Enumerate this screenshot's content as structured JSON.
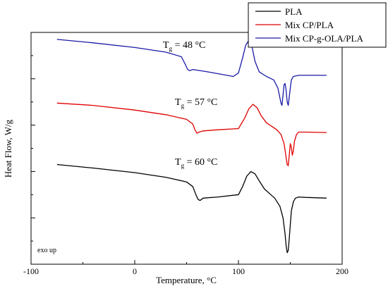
{
  "chart_data": {
    "type": "line",
    "xlabel": "Temperature, °C",
    "ylabel": "Heat Flow, W/g",
    "xlim": [
      -100,
      200
    ],
    "x_ticks": [
      "-100",
      "0",
      "100",
      "200"
    ],
    "y_tick_labels_shown": false,
    "grid": false,
    "legend_position": "top-right",
    "note": "exo up",
    "annotations": [
      {
        "prefix": "T",
        "sub": "g",
        "suffix": " = 48 °C",
        "series": "Mix CP-g-OLA/PLA"
      },
      {
        "prefix": "T",
        "sub": "g",
        "suffix": " = 57 °C",
        "series": "Mix CP/PLA"
      },
      {
        "prefix": "T",
        "sub": "g",
        "suffix": " = 60 °C",
        "series": "PLA"
      }
    ],
    "ylim": [
      0,
      10
    ],
    "series": [
      {
        "name": "PLA",
        "color": "#000000",
        "x": [
          -75,
          -40,
          0,
          30,
          50,
          56,
          59,
          61,
          63,
          66,
          80,
          100,
          104,
          108,
          112,
          116,
          120,
          125,
          130,
          135,
          140,
          143,
          145,
          146,
          147,
          148,
          149,
          150,
          151,
          153,
          155,
          158,
          165,
          185
        ],
        "y": [
          4.3,
          4.15,
          3.95,
          3.75,
          3.55,
          3.35,
          3.0,
          2.8,
          2.75,
          2.85,
          2.9,
          3.0,
          3.35,
          3.8,
          4.0,
          3.9,
          3.6,
          3.25,
          3.05,
          2.85,
          2.5,
          2.0,
          1.3,
          0.8,
          0.5,
          0.6,
          1.1,
          1.7,
          2.3,
          2.7,
          2.85,
          2.9,
          2.88,
          2.85
        ]
      },
      {
        "name": "Mix CP/PLA",
        "color": "#e00000",
        "x": [
          -75,
          -40,
          0,
          30,
          50,
          56,
          58,
          60,
          62,
          66,
          80,
          100,
          106,
          110,
          114,
          118,
          122,
          127,
          132,
          137,
          141,
          144,
          146,
          147,
          148,
          149,
          150,
          151,
          152,
          153,
          154,
          156,
          158,
          165,
          185
        ],
        "y": [
          6.95,
          6.85,
          6.65,
          6.45,
          6.25,
          6.05,
          5.8,
          5.65,
          5.7,
          5.75,
          5.8,
          5.85,
          6.3,
          6.7,
          6.9,
          6.75,
          6.4,
          6.1,
          5.95,
          5.8,
          5.6,
          5.2,
          4.6,
          4.3,
          4.25,
          4.7,
          5.2,
          5.05,
          4.7,
          4.9,
          5.3,
          5.6,
          5.7,
          5.7,
          5.68
        ]
      },
      {
        "name": "Mix CP-g-OLA/PLA",
        "color": "#1a1aa8",
        "x": [
          -75,
          -40,
          0,
          30,
          45,
          49,
          51,
          53,
          56,
          70,
          95,
          100,
          104,
          107,
          110,
          113,
          116,
          120,
          127,
          134,
          138,
          141,
          142,
          143,
          144,
          145,
          146,
          147,
          148,
          149,
          150,
          151,
          153,
          158,
          170,
          185
        ],
        "y": [
          9.7,
          9.55,
          9.35,
          9.15,
          8.95,
          8.6,
          8.4,
          8.35,
          8.4,
          8.3,
          8.1,
          8.25,
          8.9,
          9.45,
          9.65,
          9.4,
          8.75,
          8.3,
          8.1,
          7.95,
          7.6,
          6.95,
          6.85,
          7.3,
          7.75,
          7.8,
          7.5,
          7.0,
          6.85,
          7.2,
          7.6,
          7.95,
          8.1,
          8.15,
          8.15,
          8.15
        ]
      }
    ]
  }
}
